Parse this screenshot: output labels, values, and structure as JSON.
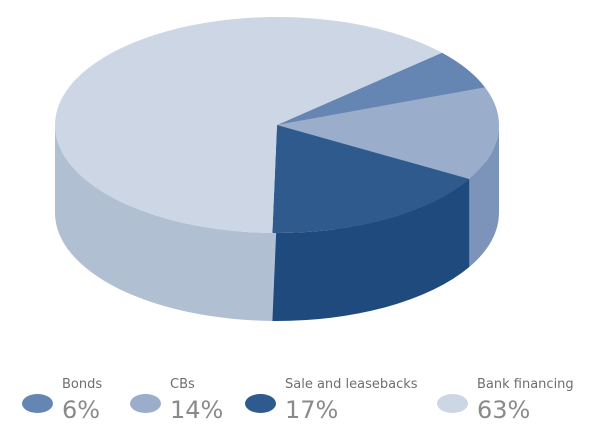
{
  "chart_data": {
    "type": "pie",
    "style": "3d",
    "legend_position": "bottom",
    "slices": [
      {
        "label": "Bonds",
        "value": 6,
        "value_label": "6%",
        "color": "#6585B3",
        "side_color": "#4F6F9E"
      },
      {
        "label": "CBs",
        "value": 14,
        "value_label": "14%",
        "color": "#9AAECB",
        "side_color": "#7C94B9"
      },
      {
        "label": "Sale and leasebacks",
        "value": 17,
        "value_label": "17%",
        "color": "#2E5A8E",
        "side_color": "#1F4A7E"
      },
      {
        "label": "Bank financing",
        "value": 63,
        "value_label": "63%",
        "color": "#CDD6E4",
        "side_color": "#B1BFD3"
      }
    ]
  }
}
